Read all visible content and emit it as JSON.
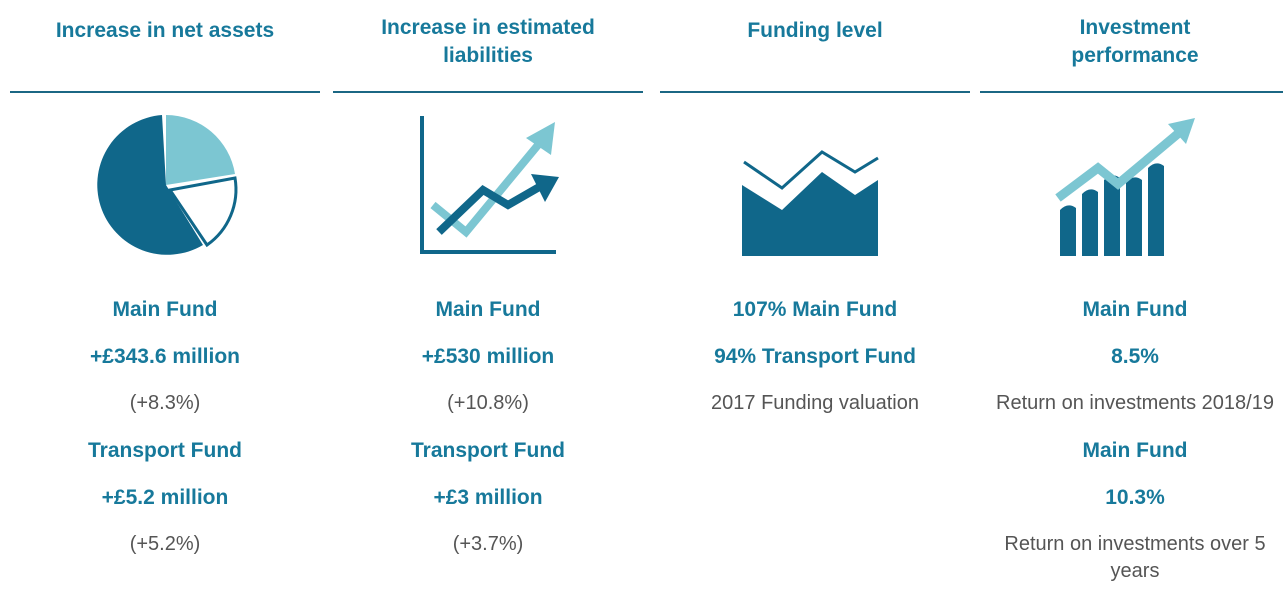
{
  "columns": [
    {
      "heading": "Increase in net assets",
      "items": [
        {
          "text": "Main Fund",
          "style": "bold"
        },
        {
          "text": "+£343.6 million",
          "style": "bold"
        },
        {
          "text": "(+8.3%)",
          "style": "plain"
        },
        {
          "text": "Transport Fund",
          "style": "bold"
        },
        {
          "text": "+£5.2 million",
          "style": "bold"
        },
        {
          "text": "(+5.2%)",
          "style": "plain"
        }
      ]
    },
    {
      "heading": "Increase in estimated liabilities",
      "items": [
        {
          "text": "Main Fund",
          "style": "bold"
        },
        {
          "text": "+£530 million",
          "style": "bold"
        },
        {
          "text": "(+10.8%)",
          "style": "plain"
        },
        {
          "text": "Transport Fund",
          "style": "bold"
        },
        {
          "text": "+£3 million",
          "style": "bold"
        },
        {
          "text": "(+3.7%)",
          "style": "plain"
        }
      ]
    },
    {
      "heading": "Funding level",
      "items": [
        {
          "text": "107% Main Fund",
          "style": "bold"
        },
        {
          "text": "94% Transport Fund",
          "style": "bold"
        },
        {
          "text": "2017 Funding valuation",
          "style": "plain"
        }
      ]
    },
    {
      "heading": "Investment performance",
      "items": [
        {
          "text": "Main Fund",
          "style": "bold"
        },
        {
          "text": "8.5%",
          "style": "bold"
        },
        {
          "text": "Return on investments 2018/19",
          "style": "plain"
        },
        {
          "text": "Main Fund",
          "style": "bold"
        },
        {
          "text": "10.3%",
          "style": "bold"
        },
        {
          "text": "Return on investments over 5 years",
          "style": "plain"
        }
      ]
    }
  ]
}
